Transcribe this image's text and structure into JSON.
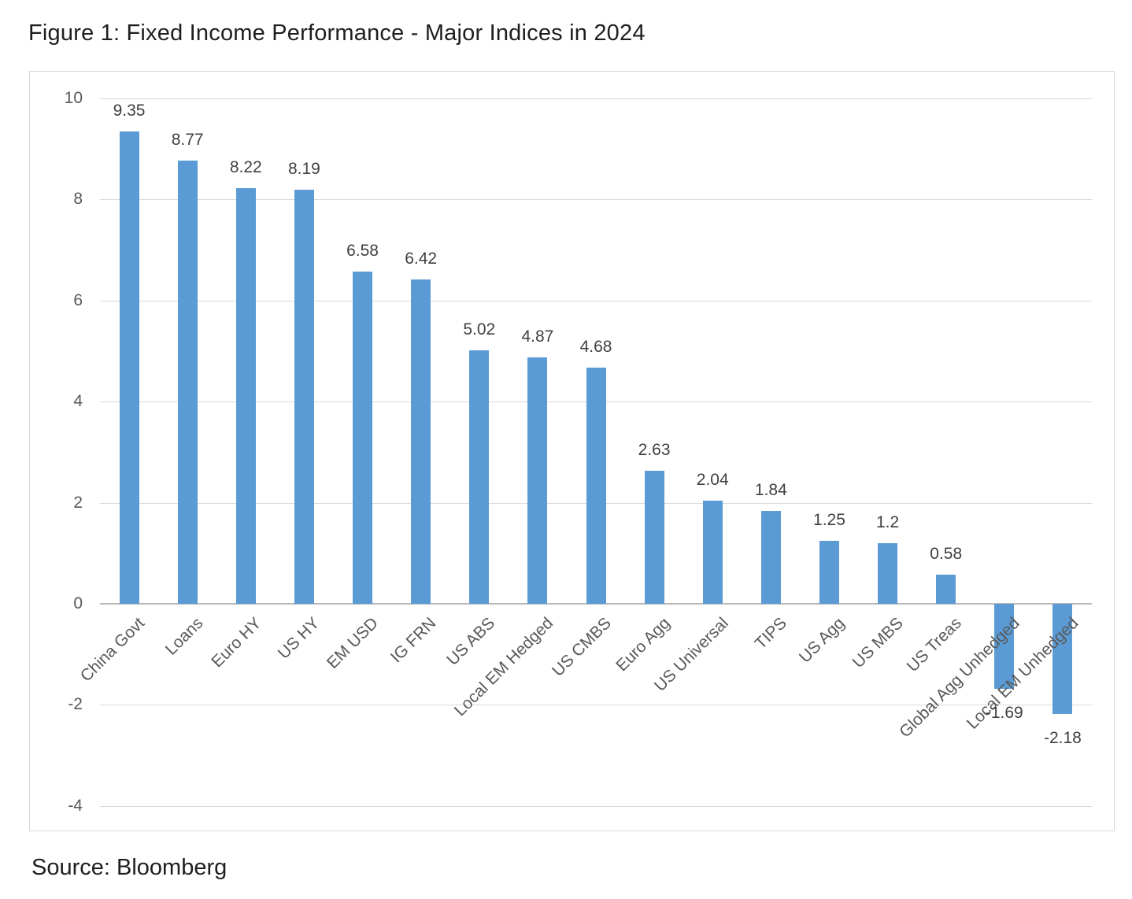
{
  "figure": {
    "title": "Figure 1: Fixed Income Performance - Major Indices in 2024",
    "source": "Source: Bloomberg"
  },
  "chart_data": {
    "type": "bar",
    "title": "Figure 1: Fixed Income Performance - Major Indices in 2024",
    "source": "Source: Bloomberg",
    "categories": [
      "China Govt",
      "Loans",
      "Euro HY",
      "US HY",
      "EM USD",
      "IG FRN",
      "US ABS",
      "Local EM Hedged",
      "US CMBS",
      "Euro Agg",
      "US Universal",
      "TIPS",
      "US Agg",
      "US MBS",
      "US Treas",
      "Global Agg Unhedged",
      "Local EM Unhedged"
    ],
    "values": [
      9.35,
      8.77,
      8.22,
      8.19,
      6.58,
      6.42,
      5.02,
      4.87,
      4.68,
      2.63,
      2.04,
      1.84,
      1.25,
      1.2,
      0.58,
      -1.69,
      -2.18
    ],
    "value_labels": [
      "9.35",
      "8.77",
      "8.22",
      "8.19",
      "6.58",
      "6.42",
      "5.02",
      "4.87",
      "4.68",
      "2.63",
      "2.04",
      "1.84",
      "1.25",
      "1.2",
      "0.58",
      "-1.69",
      "-2.18"
    ],
    "xlabel": "",
    "ylabel": "",
    "ylim": [
      -4,
      10
    ],
    "y_ticks": [
      10,
      8,
      6,
      4,
      2,
      0,
      -2,
      -4
    ],
    "grid": true,
    "legend": false,
    "bar_color": "#5B9BD5",
    "value_label_color": "#404040",
    "axis_text_color": "#595959",
    "gridline_color": "#D9D9D9",
    "zero_line_color": "#B9B9B9"
  }
}
